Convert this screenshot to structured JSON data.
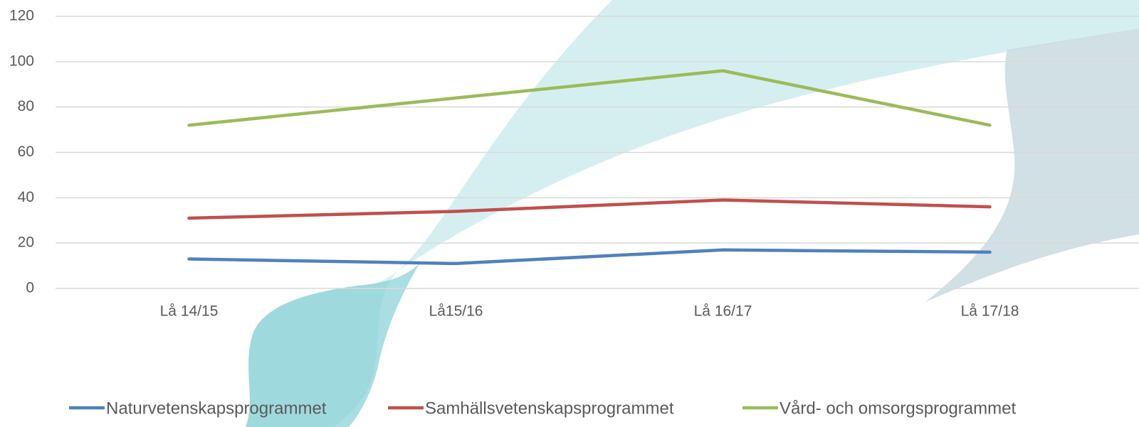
{
  "chart_data": {
    "type": "line",
    "categories": [
      "Lå 14/15",
      "Lå15/16",
      "Lå 16/17",
      "Lå 17/18"
    ],
    "series": [
      {
        "name": "Naturvetenskapsprogrammet",
        "color": "#4f81bd",
        "values": [
          13,
          11,
          17,
          16
        ]
      },
      {
        "name": "Samhällsvetenskapsprogrammet",
        "color": "#c0504d",
        "values": [
          31,
          34,
          39,
          36
        ]
      },
      {
        "name": "Vård- och omsorgsprogrammet",
        "color": "#9bbb59",
        "values": [
          72,
          84,
          96,
          72
        ]
      }
    ],
    "ylim": [
      0,
      120
    ],
    "yticks": [
      0,
      20,
      40,
      60,
      80,
      100,
      120
    ],
    "grid": true,
    "legend": "bottom"
  }
}
